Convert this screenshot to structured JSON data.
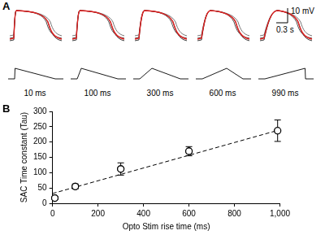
{
  "panel_labels": [
    "A",
    "B"
  ],
  "panel_a": {
    "scale_bar": {
      "voltage": "10 mV",
      "time": "0.3 s"
    },
    "stimuli": [
      {
        "value": 10,
        "label": "10 ms"
      },
      {
        "value": 100,
        "label": "100 ms"
      },
      {
        "value": 300,
        "label": "300 ms"
      },
      {
        "value": 600,
        "label": "600 ms"
      },
      {
        "value": 990,
        "label": "990 ms"
      }
    ]
  },
  "chart_data": {
    "type": "scatter",
    "x_label": "Opto Stim rise time (ms)",
    "y_label": "SAC Time constant (Tau)",
    "xlim": [
      0,
      1000
    ],
    "xticks": [
      0,
      200,
      400,
      600,
      800,
      1000
    ],
    "ylim": [
      0,
      300
    ],
    "yticks": [
      0,
      50,
      100,
      150,
      200,
      250,
      300
    ],
    "grid": false,
    "series": [
      {
        "type": "scatter",
        "color": "#000000",
        "marker": "circle",
        "x": [
          10,
          100,
          300,
          600,
          990
        ],
        "values": [
          17,
          55,
          112,
          170,
          237
        ],
        "errors": [
          5,
          8,
          20,
          15,
          35
        ]
      },
      {
        "type": "line",
        "color": "#000000",
        "line_style": "dashed",
        "x": [
          0,
          1000
        ],
        "values": [
          32,
          240
        ]
      }
    ]
  }
}
